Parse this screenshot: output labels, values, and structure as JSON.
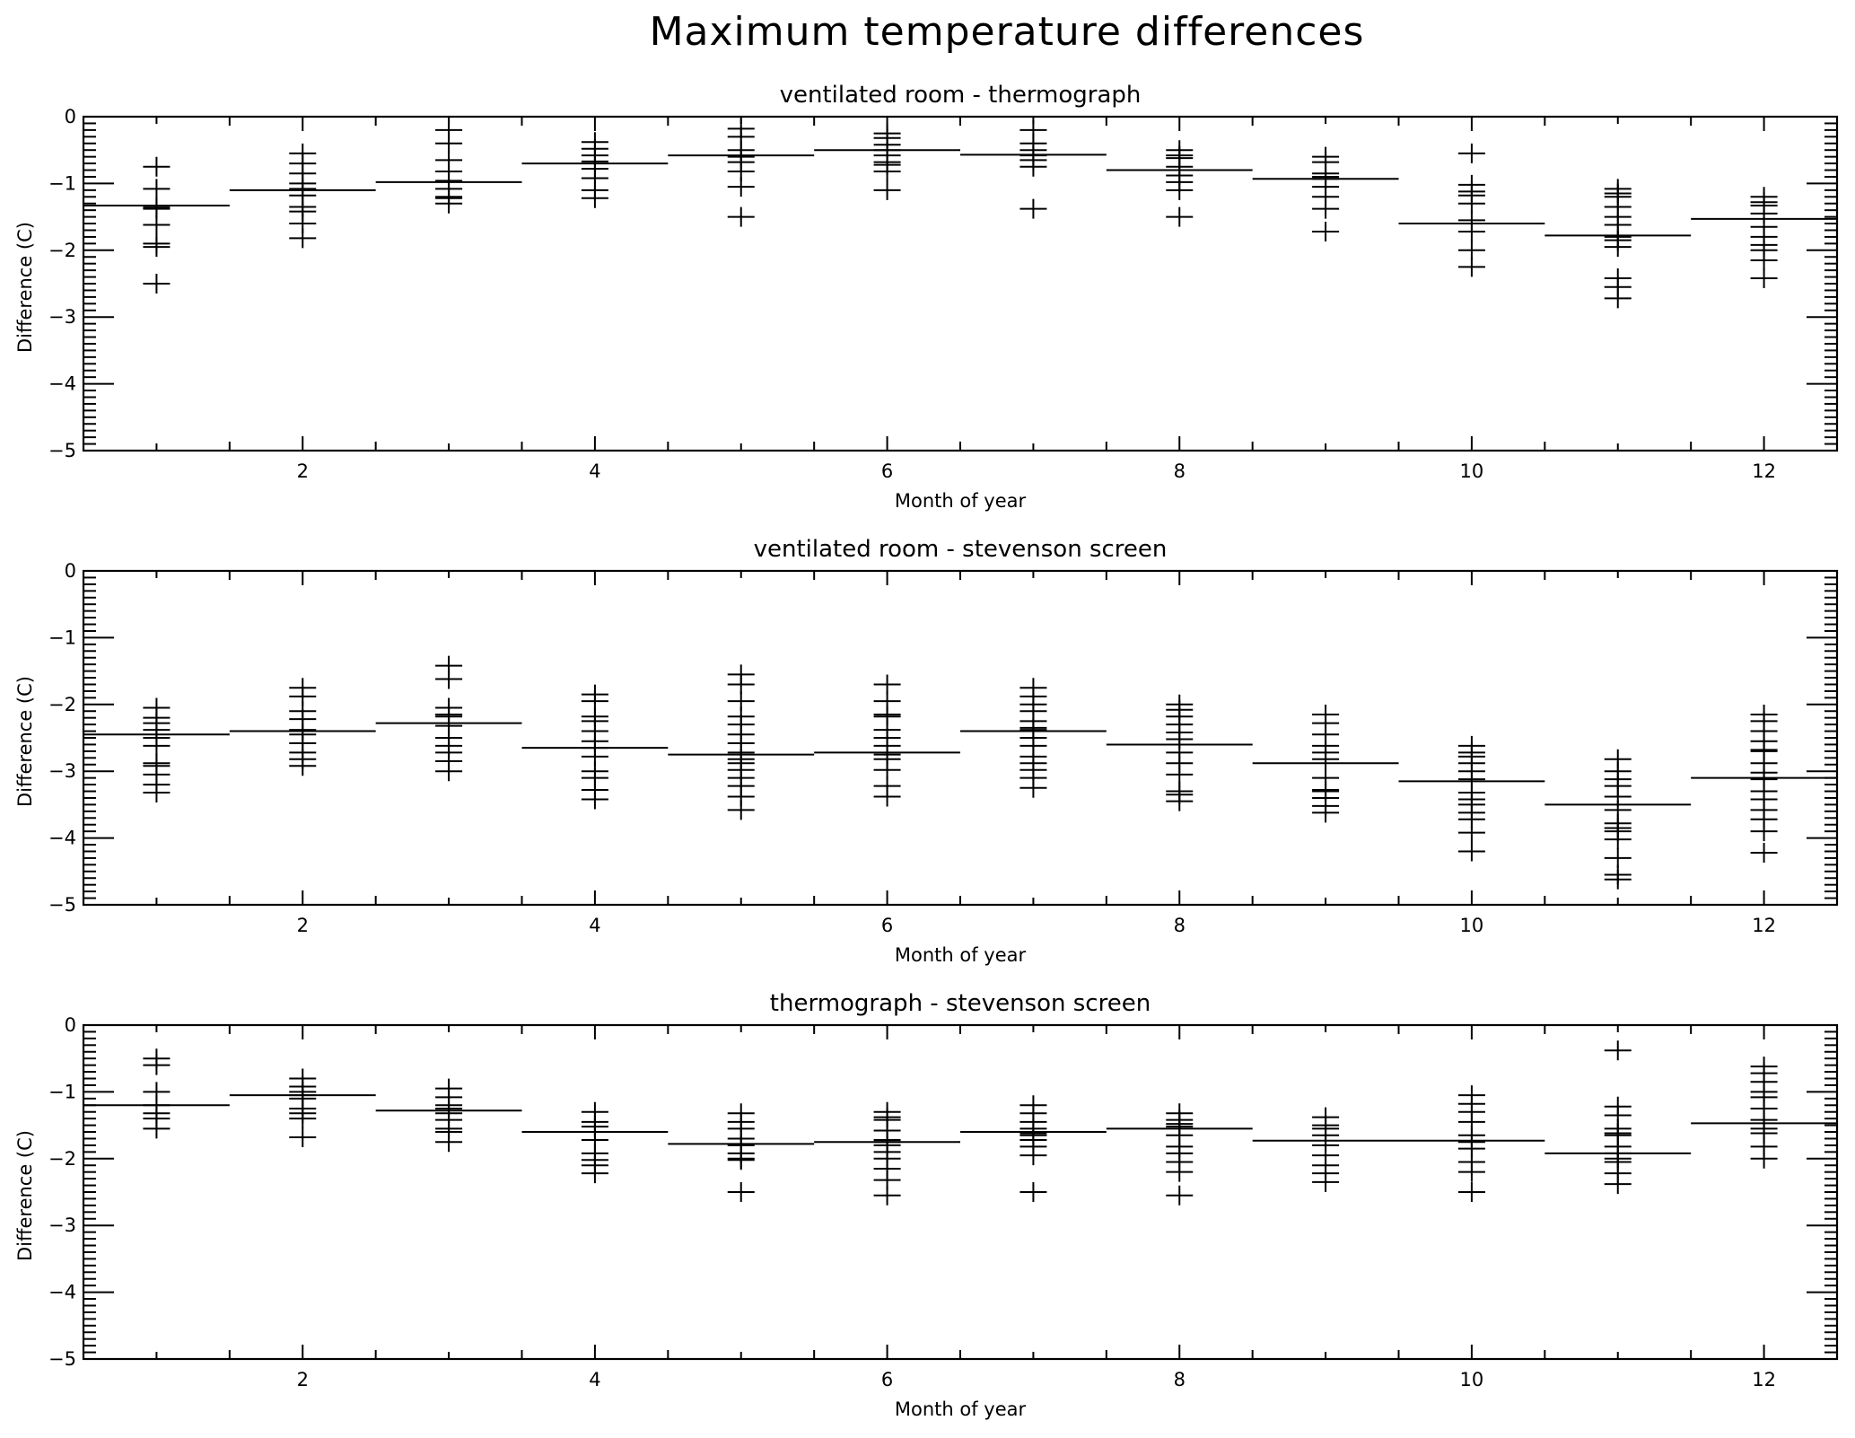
{
  "figure_title": "Maximum temperature differences",
  "chart_data": [
    {
      "type": "scatter",
      "title": "ventilated room - thermograph",
      "xlabel": "Month of year",
      "ylabel": "Difference (C)",
      "xlim": [
        0.5,
        12.5
      ],
      "ylim": [
        -5,
        0
      ],
      "xticks": [
        2,
        4,
        6,
        8,
        10,
        12
      ],
      "yticks": [
        0,
        -1,
        -2,
        -3,
        -4,
        -5
      ],
      "grid": false,
      "marker": "plus",
      "monthly_means": [
        -1.33,
        -1.1,
        -0.98,
        -0.7,
        -0.58,
        -0.5,
        -0.57,
        -0.8,
        -0.93,
        -1.6,
        -1.78,
        -1.53
      ],
      "points": [
        [
          -0.75,
          -1.08,
          -1.36,
          -1.38,
          -1.62,
          -1.9,
          -1.95,
          -2.5
        ],
        [
          -0.55,
          -0.7,
          -0.85,
          -1.0,
          -1.08,
          -1.18,
          -1.35,
          -1.42,
          -1.6,
          -1.82
        ],
        [
          -0.2,
          -0.4,
          -0.65,
          -0.82,
          -0.96,
          -1.08,
          -1.2,
          -1.22,
          -1.3
        ],
        [
          -0.38,
          -0.48,
          -0.58,
          -0.67,
          -0.78,
          -0.92,
          -1.1,
          -1.22
        ],
        [
          -0.18,
          -0.3,
          -0.5,
          -0.6,
          -0.68,
          -0.82,
          -1.05,
          -1.5
        ],
        [
          -0.25,
          -0.32,
          -0.42,
          -0.5,
          -0.58,
          -0.68,
          -0.72,
          -0.82,
          -1.1
        ],
        [
          -0.2,
          -0.4,
          -0.5,
          -0.58,
          -0.65,
          -0.75,
          -1.38
        ],
        [
          -0.5,
          -0.58,
          -0.62,
          -0.75,
          -0.88,
          -0.98,
          -1.1,
          -1.5
        ],
        [
          -0.6,
          -0.68,
          -0.85,
          -0.9,
          -0.93,
          -1.05,
          -1.2,
          -1.38,
          -1.72
        ],
        [
          -0.55,
          -1.02,
          -1.12,
          -1.18,
          -1.3,
          -1.55,
          -1.72,
          -2.0,
          -2.25
        ],
        [
          -1.08,
          -1.15,
          -1.2,
          -1.35,
          -1.5,
          -1.62,
          -1.8,
          -1.85,
          -1.95,
          -2.42,
          -2.55,
          -2.72
        ],
        [
          -1.2,
          -1.28,
          -1.33,
          -1.45,
          -1.65,
          -1.8,
          -1.92,
          -2.0,
          -2.15,
          -2.42
        ]
      ]
    },
    {
      "type": "scatter",
      "title": "ventilated room - stevenson screen",
      "xlabel": "Month of year",
      "ylabel": "Difference (C)",
      "xlim": [
        0.5,
        12.5
      ],
      "ylim": [
        -5,
        0
      ],
      "xticks": [
        2,
        4,
        6,
        8,
        10,
        12
      ],
      "yticks": [
        0,
        -1,
        -2,
        -3,
        -4,
        -5
      ],
      "grid": false,
      "marker": "plus",
      "monthly_means": [
        -2.45,
        -2.4,
        -2.28,
        -2.65,
        -2.75,
        -2.72,
        -2.4,
        -2.6,
        -2.88,
        -3.15,
        -3.5,
        -3.1
      ],
      "points": [
        [
          -2.05,
          -2.2,
          -2.28,
          -2.38,
          -2.5,
          -2.62,
          -2.88,
          -2.92,
          -3.05,
          -3.2,
          -3.32
        ],
        [
          -1.75,
          -1.88,
          -2.1,
          -2.22,
          -2.38,
          -2.45,
          -2.58,
          -2.72,
          -2.82,
          -2.92
        ],
        [
          -1.42,
          -1.62,
          -2.05,
          -2.15,
          -2.18,
          -2.32,
          -2.5,
          -2.62,
          -2.72,
          -2.85,
          -3.0
        ],
        [
          -1.85,
          -1.95,
          -2.18,
          -2.25,
          -2.4,
          -2.55,
          -2.65,
          -2.78,
          -3.0,
          -3.1,
          -3.28,
          -3.42
        ],
        [
          -1.55,
          -1.7,
          -1.95,
          -2.18,
          -2.3,
          -2.45,
          -2.58,
          -2.72,
          -2.82,
          -2.88,
          -2.98,
          -3.1,
          -3.22,
          -3.38,
          -3.58
        ],
        [
          -1.7,
          -1.95,
          -2.15,
          -2.18,
          -2.38,
          -2.5,
          -2.62,
          -2.75,
          -2.82,
          -2.98,
          -3.22,
          -3.38
        ],
        [
          -1.75,
          -1.88,
          -2.0,
          -2.1,
          -2.25,
          -2.35,
          -2.38,
          -2.5,
          -2.62,
          -2.78,
          -2.88,
          -2.98,
          -3.1,
          -3.25
        ],
        [
          -2.0,
          -2.08,
          -2.18,
          -2.3,
          -2.42,
          -2.52,
          -2.72,
          -2.88,
          -3.05,
          -3.3,
          -3.35,
          -3.45
        ],
        [
          -2.15,
          -2.28,
          -2.45,
          -2.62,
          -2.72,
          -2.82,
          -3.1,
          -3.28,
          -3.3,
          -3.4,
          -3.52,
          -3.62
        ],
        [
          -2.62,
          -2.72,
          -2.78,
          -2.88,
          -3.0,
          -3.12,
          -3.32,
          -3.42,
          -3.5,
          -3.62,
          -3.72,
          -3.92,
          -4.2
        ],
        [
          -2.82,
          -3.0,
          -3.12,
          -3.22,
          -3.38,
          -3.58,
          -3.78,
          -3.85,
          -3.9,
          -4.02,
          -4.3,
          -4.55,
          -4.62
        ],
        [
          -2.15,
          -2.25,
          -2.4,
          -2.55,
          -2.68,
          -2.7,
          -2.88,
          -3.02,
          -3.12,
          -3.3,
          -3.42,
          -3.58,
          -3.72,
          -3.9,
          -4.22
        ]
      ]
    },
    {
      "type": "scatter",
      "title": "thermograph - stevenson screen",
      "xlabel": "Month of year",
      "ylabel": "Difference (C)",
      "xlim": [
        0.5,
        12.5
      ],
      "ylim": [
        -5,
        0
      ],
      "xticks": [
        2,
        4,
        6,
        8,
        10,
        12
      ],
      "yticks": [
        0,
        -1,
        -2,
        -3,
        -4,
        -5
      ],
      "grid": false,
      "marker": "plus",
      "monthly_means": [
        -1.2,
        -1.05,
        -1.28,
        -1.6,
        -1.78,
        -1.75,
        -1.6,
        -1.55,
        -1.73,
        -1.73,
        -1.92,
        -1.47
      ],
      "points": [
        [
          -0.5,
          -0.6,
          -1.0,
          -1.2,
          -1.32,
          -1.4,
          -1.55
        ],
        [
          -0.8,
          -0.92,
          -1.0,
          -1.05,
          -1.1,
          -1.25,
          -1.32,
          -1.4,
          -1.68
        ],
        [
          -0.95,
          -1.08,
          -1.2,
          -1.25,
          -1.32,
          -1.42,
          -1.55,
          -1.6,
          -1.75
        ],
        [
          -1.3,
          -1.45,
          -1.52,
          -1.6,
          -1.72,
          -1.92,
          -2.02,
          -2.1,
          -2.22
        ],
        [
          -1.32,
          -1.45,
          -1.55,
          -1.7,
          -1.8,
          -1.92,
          -2.0,
          -2.02,
          -2.5
        ],
        [
          -1.3,
          -1.38,
          -1.42,
          -1.58,
          -1.72,
          -1.75,
          -1.8,
          -1.9,
          -2.0,
          -2.15,
          -2.32,
          -2.55
        ],
        [
          -1.2,
          -1.32,
          -1.45,
          -1.55,
          -1.62,
          -1.65,
          -1.72,
          -1.82,
          -1.95,
          -2.5
        ],
        [
          -1.32,
          -1.42,
          -1.48,
          -1.52,
          -1.65,
          -1.82,
          -1.92,
          -2.05,
          -2.2,
          -2.55
        ],
        [
          -1.38,
          -1.5,
          -1.55,
          -1.65,
          -1.8,
          -1.95,
          -2.1,
          -2.22,
          -2.35
        ],
        [
          -1.05,
          -1.18,
          -1.3,
          -1.45,
          -1.65,
          -1.75,
          -1.85,
          -2.05,
          -2.2,
          -2.5
        ],
        [
          -0.38,
          -1.22,
          -1.35,
          -1.55,
          -1.62,
          -1.65,
          -1.82,
          -1.92,
          -2.0,
          -2.05,
          -2.22,
          -2.38
        ],
        [
          -0.62,
          -0.72,
          -0.85,
          -1.0,
          -1.08,
          -1.25,
          -1.42,
          -1.55,
          -1.62,
          -1.82,
          -2.0
        ]
      ]
    }
  ]
}
